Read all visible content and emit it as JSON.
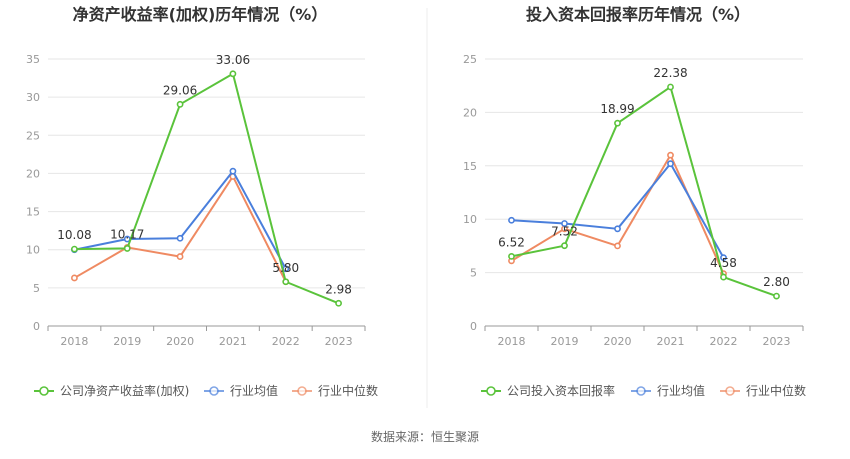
{
  "chart_data": [
    {
      "type": "line",
      "title": "净资产收益率(加权)历年情况（%）",
      "categories": [
        "2018",
        "2019",
        "2020",
        "2021",
        "2022",
        "2023"
      ],
      "ylim": [
        0,
        35
      ],
      "yticks": [
        0,
        5,
        10,
        15,
        20,
        25,
        30,
        35
      ],
      "grid": true,
      "legend_position": "bottom",
      "series": [
        {
          "name": "公司净资产收益率(加权)",
          "color": "#5ac33b",
          "values": [
            10.08,
            10.17,
            29.06,
            33.06,
            5.8,
            2.98
          ],
          "labels": [
            "10.08",
            "10.17",
            "29.06",
            "33.06",
            "5.80",
            "2.98"
          ]
        },
        {
          "name": "行业均值",
          "color": "#4a7fdc",
          "values": [
            10.0,
            11.4,
            11.5,
            20.3,
            7.5,
            null
          ]
        },
        {
          "name": "行业中位数",
          "color": "#ef8a62",
          "values": [
            6.3,
            10.3,
            9.1,
            19.6,
            5.8,
            null
          ]
        }
      ]
    },
    {
      "type": "line",
      "title": "投入资本回报率历年情况（%）",
      "categories": [
        "2018",
        "2019",
        "2020",
        "2021",
        "2022",
        "2023"
      ],
      "ylim": [
        0,
        25
      ],
      "yticks": [
        0,
        5,
        10,
        15,
        20,
        25
      ],
      "grid": true,
      "legend_position": "bottom",
      "series": [
        {
          "name": "公司投入资本回报率",
          "color": "#5ac33b",
          "values": [
            6.52,
            7.52,
            18.99,
            22.38,
            4.58,
            2.8
          ],
          "labels": [
            "6.52",
            "7.52",
            "18.99",
            "22.38",
            "4.58",
            "2.80"
          ]
        },
        {
          "name": "行业均值",
          "color": "#4a7fdc",
          "values": [
            9.9,
            9.6,
            9.1,
            15.2,
            6.4,
            null
          ]
        },
        {
          "name": "行业中位数",
          "color": "#ef8a62",
          "values": [
            6.1,
            9.1,
            7.5,
            16.0,
            4.9,
            null
          ]
        }
      ]
    }
  ],
  "footer": {
    "source": "数据来源：恒生聚源"
  }
}
